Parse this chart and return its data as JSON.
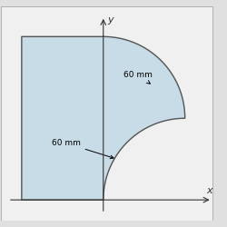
{
  "bg_color": "#e0e0e0",
  "shape_fill": "#c8dce8",
  "shape_edge": "#555555",
  "axis_color": "#333333",
  "label_60mm_upper": "60 mm",
  "label_60mm_lower": "60 mm",
  "R": 60
}
